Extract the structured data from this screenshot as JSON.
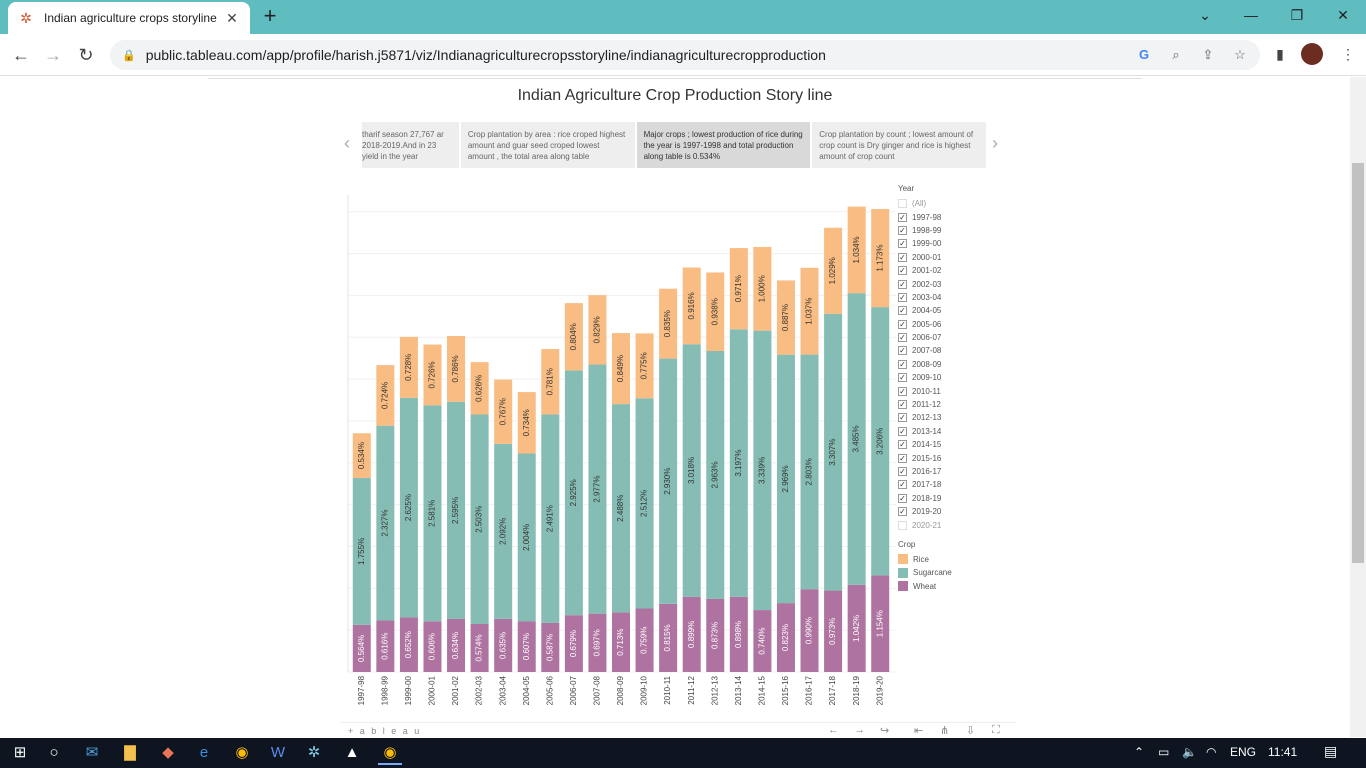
{
  "browser": {
    "tab_title": "Indian agriculture crops storyline",
    "url": "public.tableau.com/app/profile/harish.j5871/viz/Indianagriculturecropsstoryline/indianagriculturecropproduction"
  },
  "story": {
    "title": "Indian Agriculture Crop Production Story line",
    "points": [
      "tharif season 27,767 ar 2018-2019.And in 23 yield in the year",
      "Crop plantation by area : rice croped highest amount and guar seed croped lowest amount , the total area along table",
      "Major crops ; lowest production of rice during the year is 1997-1998 and total production along table is 0.534%",
      "Crop plantation by count ; lowest amount of crop count is Dry ginger and rice is highest amount of crop count"
    ]
  },
  "legend": {
    "year_title": "Year",
    "years": [
      "(All)",
      "1997-98",
      "1998-99",
      "1999-00",
      "2000-01",
      "2001-02",
      "2002-03",
      "2003-04",
      "2004-05",
      "2005-06",
      "2006-07",
      "2007-08",
      "2008-09",
      "2009-10",
      "2010-11",
      "2011-12",
      "2012-13",
      "2013-14",
      "2014-15",
      "2015-16",
      "2016-17",
      "2017-18",
      "2018-19",
      "2019-20",
      "2020-21"
    ],
    "years_checked": [
      false,
      true,
      true,
      true,
      true,
      true,
      true,
      true,
      true,
      true,
      true,
      true,
      true,
      true,
      true,
      true,
      true,
      true,
      true,
      true,
      true,
      true,
      true,
      true,
      false
    ],
    "crop_title": "Crop",
    "crops": [
      "Rice",
      "Sugarcane",
      "Wheat"
    ]
  },
  "colors": {
    "Rice": "#f9bc82",
    "Sugarcane": "#85bcb4",
    "Wheat": "#af73a1"
  },
  "chart_data": {
    "type": "bar",
    "stacked": true,
    "categories": [
      "1997-98",
      "1998-99",
      "1999-00",
      "2000-01",
      "2001-02",
      "2002-03",
      "2003-04",
      "2004-05",
      "2005-06",
      "2006-07",
      "2007-08",
      "2008-09",
      "2009-10",
      "2010-11",
      "2011-12",
      "2012-13",
      "2013-14",
      "2014-15",
      "2015-16",
      "2016-17",
      "2017-18",
      "2018-19",
      "2019-20"
    ],
    "series": [
      {
        "name": "Wheat",
        "values": [
          0.564,
          0.616,
          0.652,
          0.606,
          0.634,
          0.574,
          0.635,
          0.607,
          0.587,
          0.679,
          0.697,
          0.713,
          0.759,
          0.815,
          0.899,
          0.873,
          0.898,
          0.74,
          0.823,
          0.99,
          0.973,
          1.042,
          1.154
        ],
        "labels": [
          "0.564%",
          "0.616%",
          "0.652%",
          "0.606%",
          "0.634%",
          "0.574%",
          "0.635%",
          "0.607%",
          "0.587%",
          "0.679%",
          "0.697%",
          "0.713%",
          "0.759%",
          "0.815%",
          "0.899%",
          "0.873%",
          "0.898%",
          "0.740%",
          "0.823%",
          "0.990%",
          "0.973%",
          "1.042%",
          "1.154%"
        ]
      },
      {
        "name": "Sugarcane",
        "values": [
          1.755,
          2.327,
          2.625,
          2.581,
          2.595,
          2.503,
          2.092,
          2.004,
          2.491,
          2.925,
          2.977,
          2.488,
          2.512,
          2.93,
          3.018,
          2.963,
          3.197,
          3.339,
          2.969,
          2.803,
          3.307,
          3.485,
          3.206
        ],
        "labels": [
          "1.755%",
          "2.327%",
          "2.625%",
          "2.581%",
          "2.595%",
          "2.503%",
          "2.092%",
          "2.004%",
          "2.491%",
          "2.925%",
          "2.977%",
          "2.488%",
          "2.512%",
          "2.930%",
          "3.018%",
          "2.963%",
          "3.197%",
          "3.339%",
          "2.969%",
          "2.803%",
          "3.307%",
          "3.485%",
          "3.206%"
        ]
      },
      {
        "name": "Rice",
        "values": [
          0.534,
          0.724,
          0.728,
          0.726,
          0.786,
          0.626,
          0.767,
          0.734,
          0.781,
          0.804,
          0.829,
          0.849,
          0.775,
          0.835,
          0.916,
          0.938,
          0.971,
          1.0,
          0.887,
          1.037,
          1.029,
          1.034,
          1.173
        ],
        "labels": [
          "0.534%",
          "0.724%",
          "0.728%",
          "0.726%",
          "0.786%",
          "0.626%",
          "0.767%",
          "0.734%",
          "0.781%",
          "0.804%",
          "0.829%",
          "0.849%",
          "0.775%",
          "0.835%",
          "0.916%",
          "0.938%",
          "0.971%",
          "1.000%",
          "0.887%",
          "1.037%",
          "1.029%",
          "1.034%",
          "1.173%"
        ]
      }
    ],
    "ylim": [
      0,
      5.7
    ],
    "grid": true
  },
  "footer": {
    "brand": "+ a b l e a u"
  },
  "taskbar": {
    "lang": "ENG",
    "time": "11:41"
  }
}
